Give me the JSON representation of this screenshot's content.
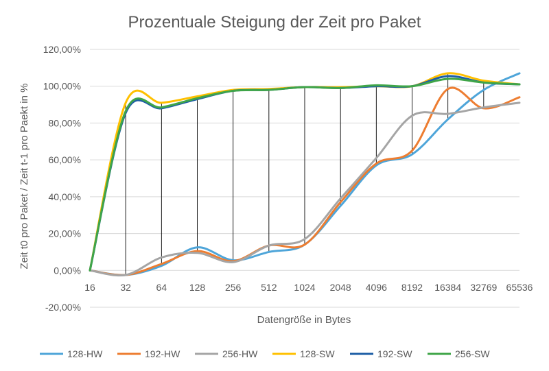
{
  "chart_data": {
    "type": "line",
    "title": "Prozentuale Steigung der Zeit pro Paket",
    "xlabel": "Datengröße  in Bytes",
    "ylabel": "Zeit t0 pro Paket / Zeit t-1 pro Paekt in %",
    "categories": [
      "16",
      "32",
      "64",
      "128",
      "256",
      "512",
      "1024",
      "2048",
      "4096",
      "8192",
      "16384",
      "32769",
      "65536"
    ],
    "ylim": [
      -20,
      120
    ],
    "yticks": [
      -20,
      0,
      20,
      40,
      60,
      80,
      100,
      120
    ],
    "ytick_labels": [
      "-20,00%",
      "0,00%",
      "20,00%",
      "40,00%",
      "60,00%",
      "80,00%",
      "100,00%",
      "120,00%"
    ],
    "grid": true,
    "drop_lines": true,
    "legend_position": "bottom",
    "series": [
      {
        "name": "128-HW",
        "color": "#4ea5d9",
        "values": [
          0,
          -2.5,
          2.5,
          12.5,
          5.5,
          10,
          14,
          35,
          57,
          63,
          82,
          98,
          107
        ]
      },
      {
        "name": "192-HW",
        "color": "#ed7d31",
        "values": [
          0,
          -2.5,
          3.5,
          10.5,
          5,
          13.5,
          14,
          37,
          58,
          65,
          98.5,
          88,
          94
        ]
      },
      {
        "name": "256-HW",
        "color": "#a5a5a5",
        "values": [
          0,
          -2.5,
          7,
          9.5,
          4.5,
          13.5,
          17,
          39,
          61,
          84,
          85,
          88.5,
          91
        ]
      },
      {
        "name": "128-SW",
        "color": "#ffc000",
        "values": [
          0,
          91,
          91,
          94.5,
          98,
          98.5,
          99.5,
          99.5,
          100,
          100,
          107,
          103,
          101
        ]
      },
      {
        "name": "192-SW",
        "color": "#1f5fa6",
        "values": [
          0,
          85.5,
          88,
          93,
          97.5,
          98,
          99.5,
          99,
          100,
          100,
          105.5,
          102,
          101
        ]
      },
      {
        "name": "256-SW",
        "color": "#3fa548",
        "values": [
          0,
          86.5,
          88.5,
          93.5,
          97.5,
          98,
          99.5,
          99,
          100.5,
          100,
          104,
          102,
          101
        ]
      }
    ]
  }
}
